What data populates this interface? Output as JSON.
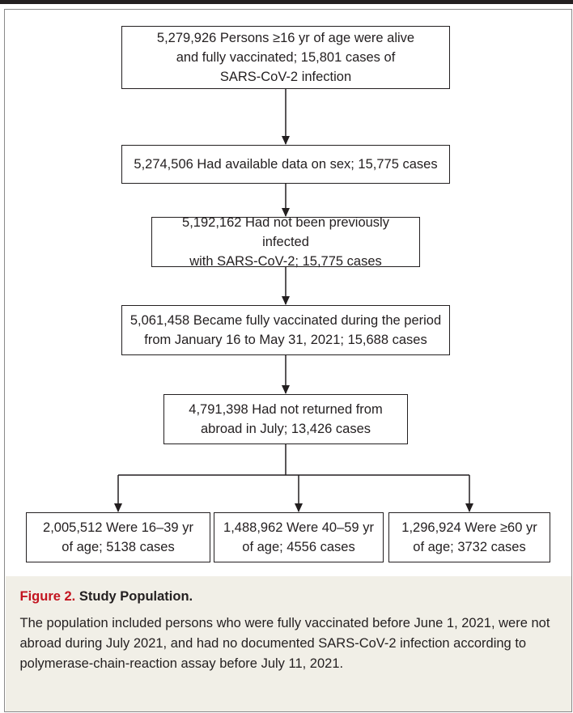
{
  "flowchart": {
    "boxes": [
      {
        "id": "b1",
        "text": "5,279,926 Persons ≥16 yr of age were alive\nand fully vaccinated; 15,801 cases of\nSARS-CoV-2 infection"
      },
      {
        "id": "b2",
        "text": "5,274,506 Had available data on sex; 15,775 cases"
      },
      {
        "id": "b3",
        "text": "5,192,162 Had not been previously infected\nwith SARS-CoV-2; 15,775 cases"
      },
      {
        "id": "b4",
        "text": "5,061,458 Became fully vaccinated during the period\nfrom January 16 to May 31, 2021; 15,688 cases"
      },
      {
        "id": "b5",
        "text": "4,791,398 Had not returned from\nabroad in July; 13,426 cases"
      },
      {
        "id": "b6",
        "text": "2,005,512 Were 16–39 yr\nof age; 5138 cases"
      },
      {
        "id": "b7",
        "text": "1,488,962 Were 40–59 yr\nof age; 4556 cases"
      },
      {
        "id": "b8",
        "text": "1,296,924 Were ≥60 yr\nof age; 3732 cases"
      }
    ],
    "links": [
      {
        "from": "b1",
        "to": "b2"
      },
      {
        "from": "b2",
        "to": "b3"
      },
      {
        "from": "b3",
        "to": "b4"
      },
      {
        "from": "b4",
        "to": "b5"
      },
      {
        "from": "b5",
        "to": "b6"
      },
      {
        "from": "b5",
        "to": "b7"
      },
      {
        "from": "b5",
        "to": "b8"
      }
    ]
  },
  "caption": {
    "figure_label": "Figure 2.",
    "title": "Study Population.",
    "text": "The population included persons who were fully vaccinated before June 1, 2021, were not abroad during July 2021, and had no documented SARS-CoV-2 infection according to polymerase-chain-reaction assay before July 11, 2021."
  }
}
